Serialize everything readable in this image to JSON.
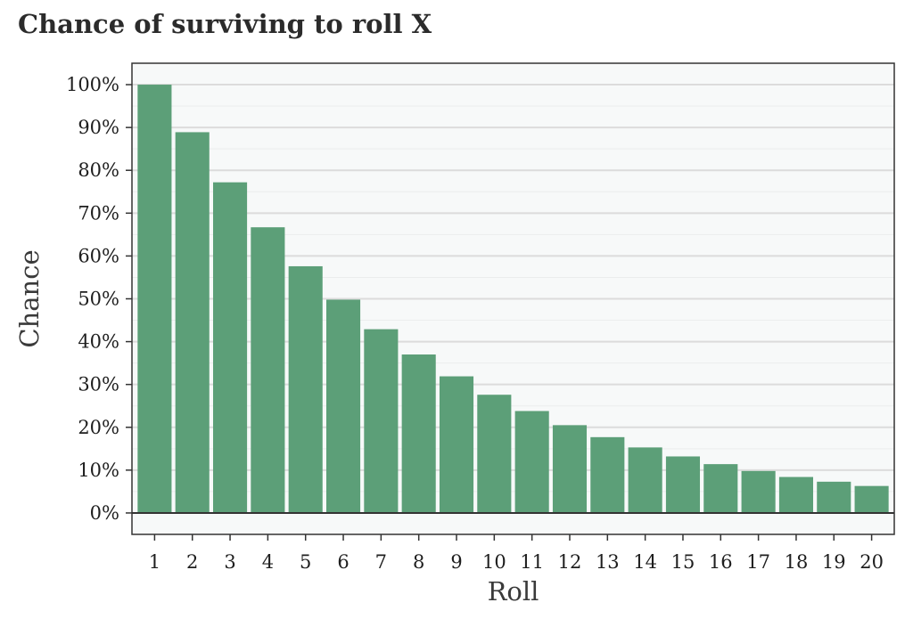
{
  "chart_data": {
    "type": "bar",
    "title": "Chance of surviving to roll X",
    "xlabel": "Roll",
    "ylabel": "Chance",
    "categories": [
      "1",
      "2",
      "3",
      "4",
      "5",
      "6",
      "7",
      "8",
      "9",
      "10",
      "11",
      "12",
      "13",
      "14",
      "15",
      "16",
      "17",
      "18",
      "19",
      "20"
    ],
    "values": [
      1.0,
      0.889,
      0.772,
      0.667,
      0.576,
      0.498,
      0.429,
      0.37,
      0.319,
      0.276,
      0.238,
      0.205,
      0.177,
      0.153,
      0.132,
      0.114,
      0.098,
      0.084,
      0.073,
      0.063
    ],
    "yticks": [
      0,
      0.1,
      0.2,
      0.3,
      0.4,
      0.5,
      0.6,
      0.7,
      0.8,
      0.9,
      1.0
    ],
    "ytick_labels": [
      "0%",
      "10%",
      "20%",
      "30%",
      "40%",
      "50%",
      "60%",
      "70%",
      "80%",
      "90%",
      "100%"
    ],
    "ylim": [
      -0.05,
      1.05
    ],
    "grid": true,
    "legend": "none",
    "colors": {
      "bar": "#5c9f78",
      "panel_background": "#f7f9f9",
      "gridline": "#dcdcdc",
      "panel_border": "#333333",
      "baseline": "#333333"
    }
  }
}
